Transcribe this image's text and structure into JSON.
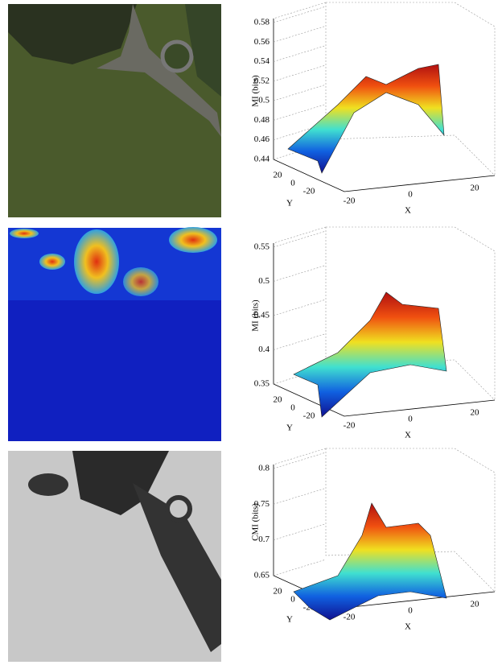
{
  "panels": [
    {
      "z_label": "MI (bits)",
      "z_ticks": [
        "0.58",
        "0.56",
        "0.54",
        "0.52",
        "0.5",
        "0.48",
        "0.46",
        "0.44"
      ],
      "y_label": "Y",
      "y_ticks": [
        "20",
        "0",
        "-20"
      ],
      "x_label": "X",
      "x_ticks": [
        "-20",
        "0",
        "20"
      ]
    },
    {
      "z_label": "MI (bits)",
      "z_ticks": [
        "0.55",
        "0.5",
        "0.45",
        "0.4",
        "0.35"
      ],
      "y_label": "Y",
      "y_ticks": [
        "20",
        "0",
        "-20"
      ],
      "x_label": "X",
      "x_ticks": [
        "-20",
        "0",
        "20"
      ]
    },
    {
      "z_label": "CMI (bits)",
      "z_ticks": [
        "0.8",
        "0.75",
        "0.7",
        "0.65"
      ],
      "y_label": "Y",
      "y_ticks": [
        "20",
        "0",
        "-20"
      ],
      "x_label": "X",
      "x_ticks": [
        "-20",
        "0",
        "20"
      ]
    }
  ]
}
